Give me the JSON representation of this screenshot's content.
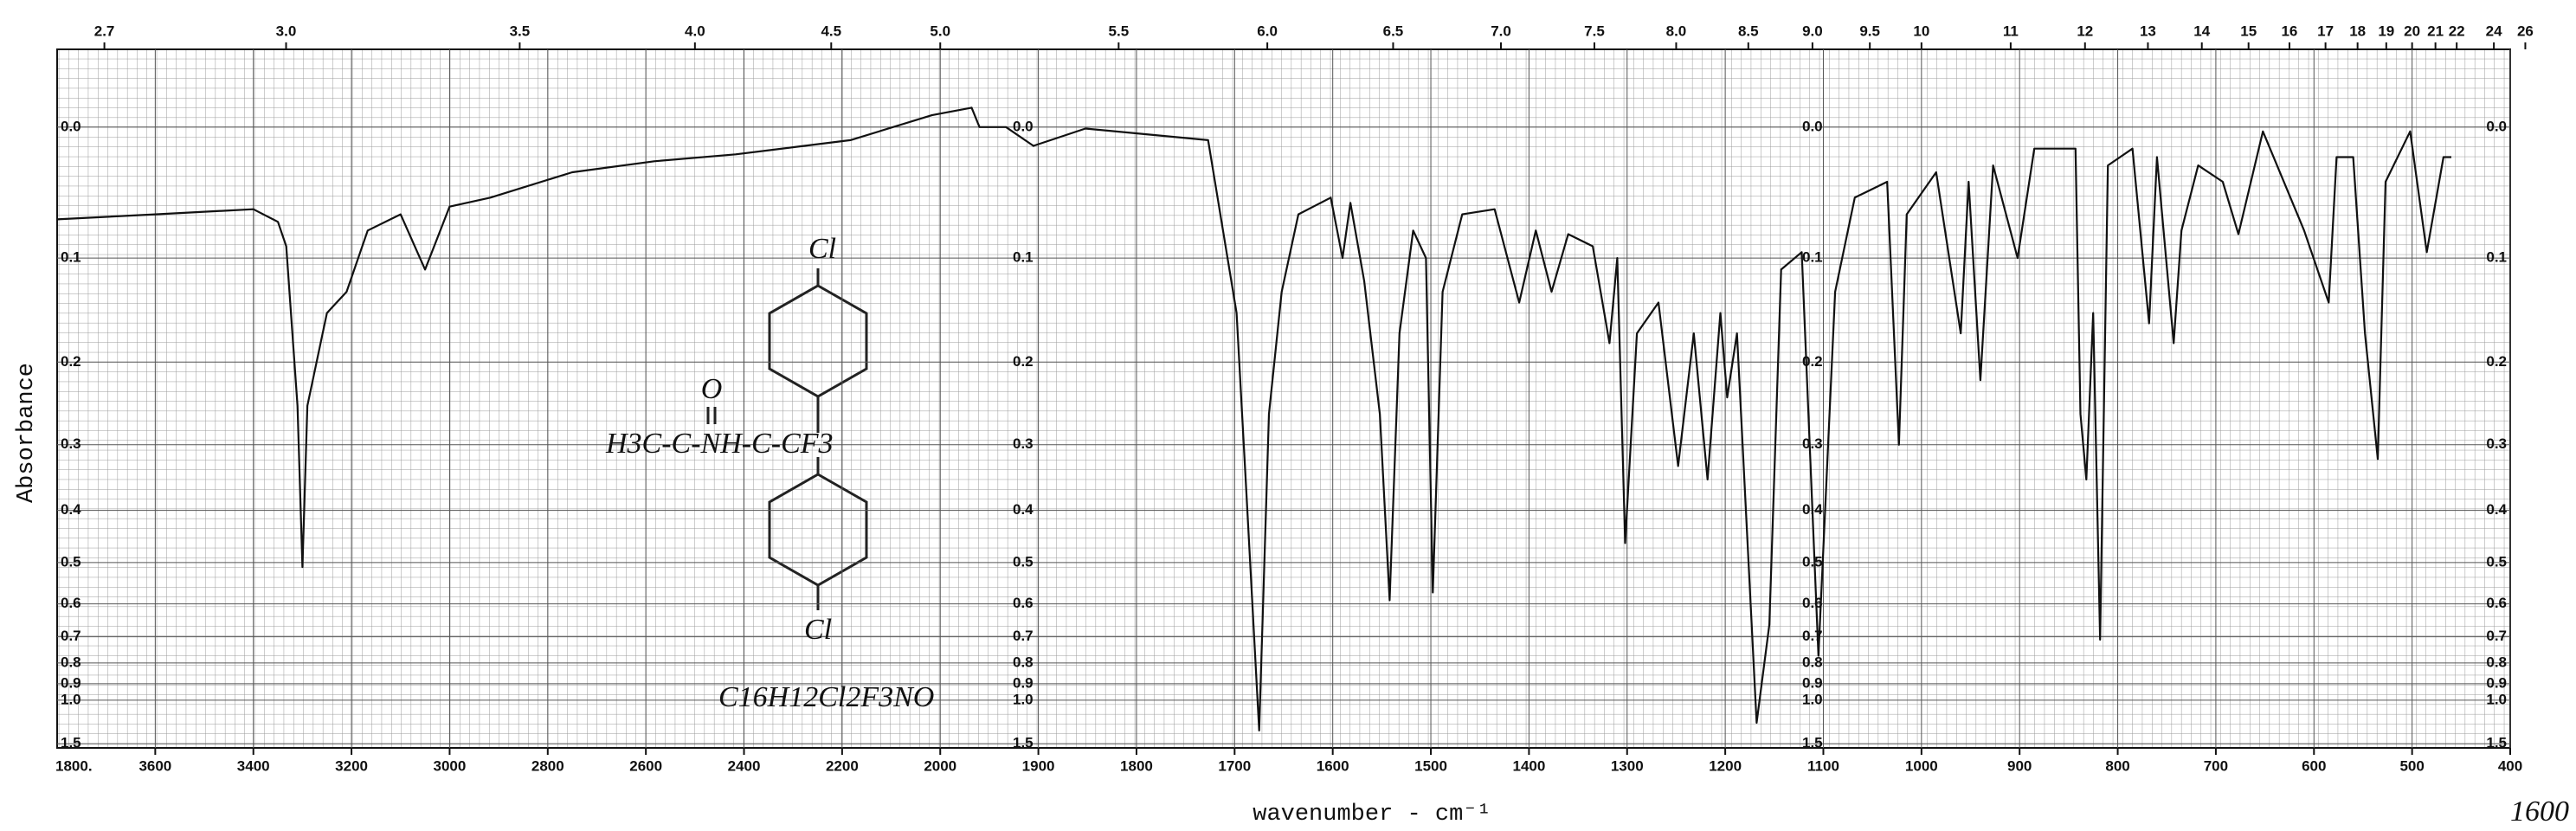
{
  "chart_data": {
    "type": "line",
    "xlabel": "wavenumber - cm⁻¹",
    "ylabel": "Absorbance",
    "y_scale": "absorbance",
    "x_break": 2000,
    "xlim": [
      3800,
      400
    ],
    "ylim": [
      -0.05,
      1.6
    ],
    "xticks": [
      3600,
      3400,
      3200,
      3000,
      2800,
      2600,
      2400,
      2200,
      2000,
      1900,
      1800,
      1700,
      1600,
      1500,
      1400,
      1300,
      1200,
      1100,
      1000,
      900,
      800,
      700,
      600,
      500,
      400
    ],
    "x2ticks": [
      2.7,
      {
        "value": 3,
        "label": "3.0"
      },
      3.5,
      {
        "value": 4,
        "label": "4.0"
      },
      4.5,
      {
        "value": 5,
        "label": "5.0"
      },
      5.5,
      {
        "value": 6,
        "label": "6.0"
      },
      6.5,
      {
        "value": 7,
        "label": "7.0"
      },
      7.5,
      {
        "value": 8,
        "label": "8.0"
      },
      8.5,
      {
        "value": 9,
        "label": "9.0"
      },
      9.5,
      10,
      11,
      12,
      13,
      14,
      15,
      16,
      17,
      18,
      19,
      20,
      21,
      22,
      24,
      26
    ],
    "yticks": [
      {
        "value": 0,
        "label": "0.0"
      },
      0.1,
      0.2,
      0.3,
      0.4,
      0.5,
      0.6,
      0.7,
      0.8,
      0.9,
      {
        "value": 1,
        "label": "1.0"
      },
      1.5
    ],
    "grid": true,
    "color": "#111111",
    "x": [
      3800,
      3600,
      3400,
      3350,
      3333,
      3310,
      3300,
      3290,
      3250,
      3210,
      3167,
      3100,
      3050,
      3000,
      2917,
      2750,
      2583,
      2417,
      2183,
      2017,
      1968,
      1960,
      1933,
      1905,
      1852,
      1727,
      1698,
      1688,
      1675,
      1665,
      1652,
      1635,
      1602,
      1590,
      1582,
      1568,
      1552,
      1542,
      1532,
      1518,
      1505,
      1498,
      1488,
      1468,
      1435,
      1410,
      1393,
      1377,
      1360,
      1335,
      1318,
      1310,
      1302,
      1290,
      1268,
      1248,
      1232,
      1218,
      1205,
      1198,
      1188,
      1168,
      1155,
      1143,
      1122,
      1105,
      1088,
      1068,
      1035,
      1023,
      1015,
      985,
      960,
      952,
      940,
      927,
      902,
      885,
      843,
      838,
      832,
      825,
      818,
      810,
      785,
      768,
      760,
      743,
      735,
      718,
      693,
      677,
      652,
      610,
      585,
      577,
      560,
      548,
      535,
      527,
      502,
      485,
      468,
      460
    ],
    "values": [
      0.068,
      0.064,
      0.06,
      0.07,
      0.09,
      0.25,
      0.51,
      0.25,
      0.15,
      0.13,
      0.077,
      0.064,
      0.11,
      0.058,
      0.051,
      0.032,
      0.024,
      0.019,
      0.009,
      -0.008,
      -0.013,
      0.0,
      0.0,
      0.013,
      0.001,
      0.009,
      0.15,
      0.37,
      1.28,
      0.26,
      0.13,
      0.064,
      0.051,
      0.1,
      0.055,
      0.12,
      0.26,
      0.59,
      0.17,
      0.077,
      0.1,
      0.57,
      0.13,
      0.064,
      0.06,
      0.14,
      0.077,
      0.13,
      0.08,
      0.09,
      0.18,
      0.1,
      0.46,
      0.17,
      0.14,
      0.33,
      0.17,
      0.35,
      0.15,
      0.24,
      0.17,
      1.19,
      0.66,
      0.11,
      0.095,
      0.77,
      0.13,
      0.051,
      0.039,
      0.3,
      0.064,
      0.032,
      0.17,
      0.039,
      0.22,
      0.027,
      0.1,
      0.015,
      0.015,
      0.26,
      0.35,
      0.15,
      0.71,
      0.027,
      0.015,
      0.16,
      0.021,
      0.18,
      0.077,
      0.027,
      0.039,
      0.08,
      0.003,
      0.077,
      0.14,
      0.021,
      0.021,
      0.17,
      0.32,
      0.039,
      0.003,
      0.095,
      0.021,
      0.021
    ],
    "annotations": [
      "1800.",
      "Cl",
      "O",
      "H3C-C-NH-C-CF3",
      "Cl",
      "C16H12Cl2F3NO",
      "1600"
    ]
  }
}
